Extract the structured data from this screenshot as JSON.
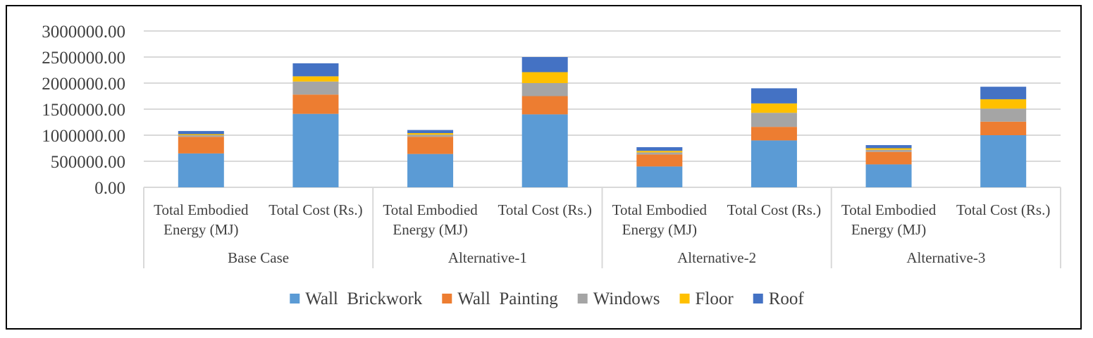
{
  "chart_data": {
    "type": "bar",
    "stacked": true,
    "groups": [
      "Base Case",
      "Alternative-1",
      "Alternative-2",
      "Alternative-3"
    ],
    "subcategories": [
      "Total Embodied Energy (MJ)",
      "Total Cost (Rs.)"
    ],
    "subcategory_lines": [
      [
        "Total Embodied",
        "Energy (MJ)"
      ],
      [
        "Total Cost (Rs.)"
      ]
    ],
    "yticks": [
      "0.00",
      "500000.00",
      "1000000.00",
      "1500000.00",
      "2000000.00",
      "2500000.00",
      "3000000.00"
    ],
    "ylim": [
      0,
      3000000
    ],
    "grid": true,
    "legend_position": "bottom",
    "series": [
      {
        "name": "Wall  Brickwork",
        "color": "#5B9BD5",
        "values": [
          650000,
          1410000,
          640000,
          1400000,
          400000,
          900000,
          440000,
          1000000
        ]
      },
      {
        "name": "Wall  Painting",
        "color": "#ED7D31",
        "values": [
          320000,
          370000,
          330000,
          350000,
          230000,
          260000,
          240000,
          260000
        ]
      },
      {
        "name": "Windows",
        "color": "#A5A5A5",
        "values": [
          30000,
          250000,
          40000,
          250000,
          40000,
          270000,
          40000,
          250000
        ]
      },
      {
        "name": "Floor",
        "color": "#FFC000",
        "values": [
          20000,
          100000,
          30000,
          210000,
          30000,
          180000,
          30000,
          180000
        ]
      },
      {
        "name": "Roof",
        "color": "#4472C4",
        "values": [
          60000,
          250000,
          60000,
          290000,
          70000,
          290000,
          60000,
          240000
        ]
      }
    ]
  }
}
